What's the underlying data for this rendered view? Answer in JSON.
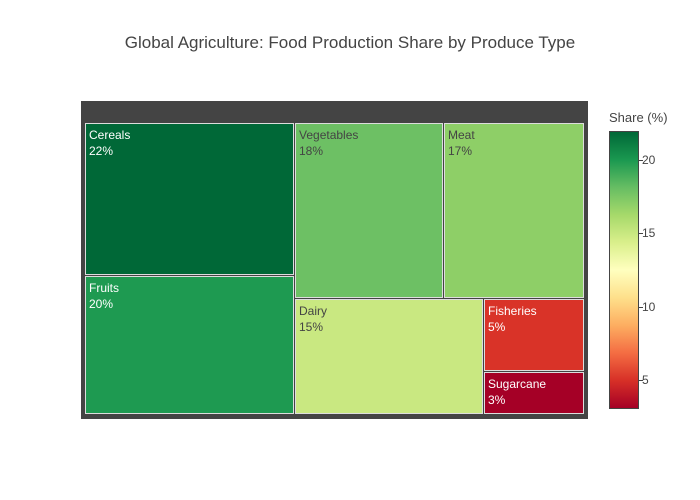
{
  "chart_data": {
    "type": "treemap",
    "title": "Global Agriculture: Food Production Share by Produce Type",
    "colorbar": {
      "title": "Share (%)",
      "range": [
        3,
        22
      ],
      "ticks": [
        5,
        10,
        15,
        20
      ],
      "colorscale": [
        "#a50026",
        "#d73027",
        "#f46d43",
        "#fdae61",
        "#fee08b",
        "#ffffbf",
        "#d9ef8b",
        "#a6d96a",
        "#66bd63",
        "#1a9850",
        "#006837"
      ]
    },
    "items": [
      {
        "name": "Cereals",
        "value": 22,
        "label": "22%"
      },
      {
        "name": "Fruits",
        "value": 20,
        "label": "20%"
      },
      {
        "name": "Vegetables",
        "value": 18,
        "label": "18%"
      },
      {
        "name": "Meat",
        "value": 17,
        "label": "17%"
      },
      {
        "name": "Dairy",
        "value": 15,
        "label": "15%"
      },
      {
        "name": "Fisheries",
        "value": 5,
        "label": "5%"
      },
      {
        "name": "Sugarcane",
        "value": 3,
        "label": "3%"
      }
    ]
  }
}
